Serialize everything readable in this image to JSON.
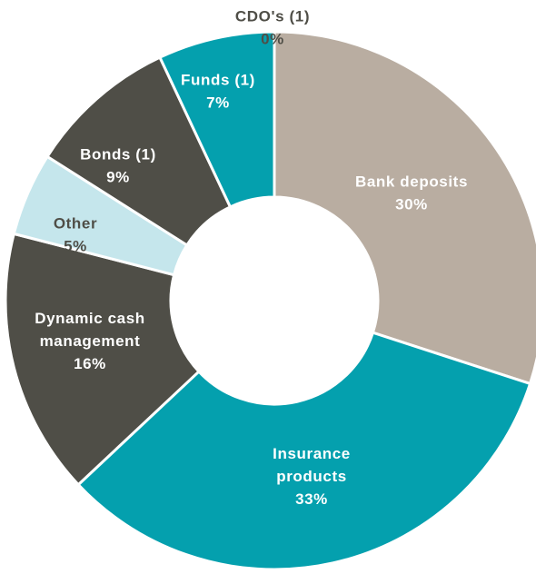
{
  "chart_data": {
    "type": "pie",
    "title": "",
    "categories": [
      "Bank deposits",
      "Insurance products",
      "Dynamic cash management",
      "Other",
      "Bonds (1)",
      "Funds (1)",
      "CDO's (1)"
    ],
    "values": [
      30,
      33,
      16,
      5,
      9,
      7,
      0
    ],
    "value_labels": [
      "30%",
      "33%",
      "16%",
      "5%",
      "9%",
      "7%",
      "0%"
    ],
    "label_lines": [
      [
        "Bank deposits",
        "30%"
      ],
      [
        "Insurance",
        "products",
        "33%"
      ],
      [
        "Dynamic cash",
        "management",
        "16%"
      ],
      [
        "Other",
        "5%"
      ],
      [
        "Bonds (1)",
        "9%"
      ],
      [
        "Funds (1)",
        "7%"
      ],
      [
        "CDO's (1)",
        "0%"
      ]
    ],
    "colors": [
      "#b9ada1",
      "#04a0ae",
      "#4f4e47",
      "#c5e6ec",
      "#4f4e47",
      "#04a0ae",
      "#04a0ae"
    ],
    "label_colors": [
      "#ffffff",
      "#ffffff",
      "#ffffff",
      "#4f4e47",
      "#ffffff",
      "#ffffff",
      "#4f4e47"
    ],
    "start_angle": "12 o'clock",
    "direction": "clockwise",
    "donut": true,
    "legend": "none"
  }
}
